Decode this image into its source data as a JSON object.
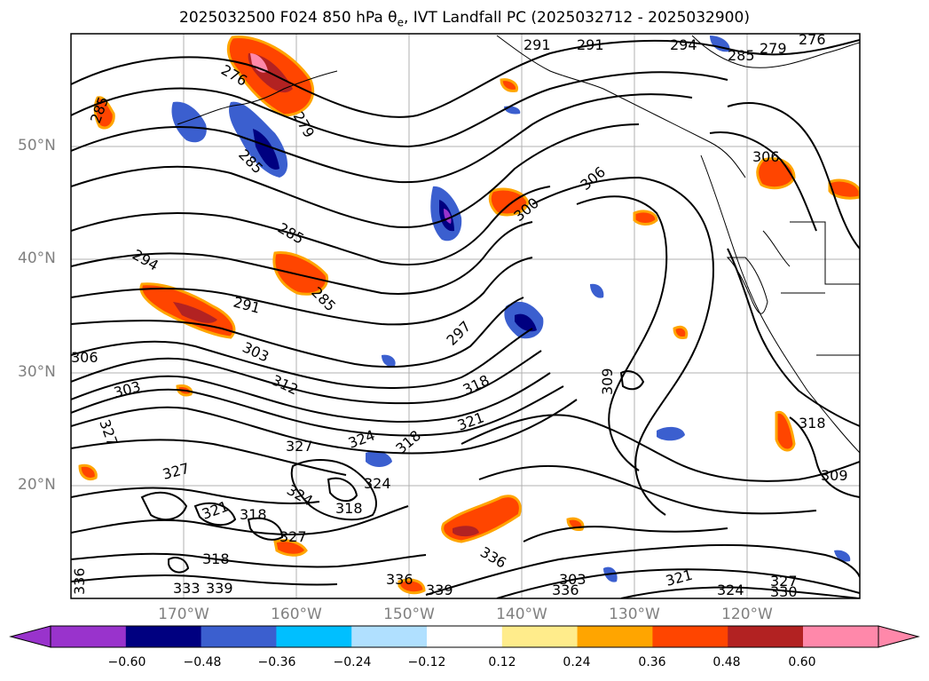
{
  "title_text": "2025032500 F024 850 hPa θ",
  "title_sub": "e",
  "title_tail": ", IVT Landfall PC (2025032712 - 2025032900)",
  "lat_labels": [
    "50°N",
    "40°N",
    "30°N",
    "20°N"
  ],
  "lon_labels": [
    "170°W",
    "160°W",
    "150°W",
    "140°W",
    "130°W",
    "120°W"
  ],
  "contour_labels": [
    "276",
    "279",
    "285",
    "291",
    "294",
    "297",
    "300",
    "303",
    "306",
    "309",
    "312",
    "318",
    "321",
    "324",
    "327",
    "330",
    "333",
    "336",
    "339"
  ],
  "colorbar": {
    "ticks": [
      "−0.60",
      "−0.48",
      "−0.36",
      "−0.24",
      "−0.12",
      "0.12",
      "0.24",
      "0.36",
      "0.48",
      "0.60"
    ],
    "colors": [
      "#9933cc",
      "#000080",
      "#3b5fcf",
      "#00bfff",
      "#b0e0ff",
      "#ffffff",
      "#ffec8b",
      "#ffa500",
      "#ff4500",
      "#b22222",
      "#ff88aa",
      "#ff88aa"
    ]
  }
}
